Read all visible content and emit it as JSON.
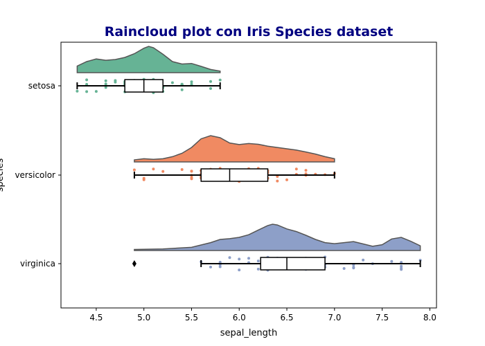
{
  "chart_data": {
    "type": "raincloud",
    "title": "Raincloud plot con Iris Species dataset",
    "xlabel": "sepal_length",
    "ylabel": "species",
    "xlim": [
      4.13,
      8.07
    ],
    "x_ticks": [
      "4.5",
      "5.0",
      "5.5",
      "6.0",
      "6.5",
      "7.0",
      "7.5",
      "8.0"
    ],
    "grid": false,
    "colors": {
      "title": "#000080",
      "axis": "#000000",
      "cloud_edge": "#555555"
    },
    "categories": [
      "setosa",
      "versicolor",
      "virginica"
    ],
    "series": [
      {
        "name": "setosa",
        "color": "#66b395",
        "box": {
          "whisker_low": 4.3,
          "q1": 4.8,
          "median": 5.0,
          "q3": 5.2,
          "whisker_high": 5.8
        },
        "outliers": [],
        "kde": {
          "x": [
            4.3,
            4.4,
            4.5,
            4.6,
            4.7,
            4.8,
            4.9,
            5.0,
            5.05,
            5.1,
            5.2,
            5.3,
            5.4,
            5.5,
            5.6,
            5.7,
            5.8
          ],
          "density": [
            0.25,
            0.42,
            0.52,
            0.47,
            0.5,
            0.58,
            0.72,
            0.93,
            1.0,
            0.95,
            0.7,
            0.42,
            0.33,
            0.35,
            0.24,
            0.12,
            0.06
          ]
        },
        "points": [
          4.3,
          4.4,
          4.4,
          4.4,
          4.5,
          4.6,
          4.6,
          4.6,
          4.6,
          4.7,
          4.7,
          4.8,
          4.8,
          4.8,
          4.8,
          4.8,
          4.9,
          4.9,
          4.9,
          4.9,
          5.0,
          5.0,
          5.0,
          5.0,
          5.0,
          5.0,
          5.0,
          5.0,
          5.1,
          5.1,
          5.1,
          5.1,
          5.1,
          5.1,
          5.1,
          5.1,
          5.2,
          5.2,
          5.2,
          5.3,
          5.4,
          5.4,
          5.4,
          5.4,
          5.4,
          5.5,
          5.5,
          5.7,
          5.7,
          5.8
        ]
      },
      {
        "name": "versicolor",
        "color": "#f08a62",
        "box": {
          "whisker_low": 4.9,
          "q1": 5.6,
          "median": 5.9,
          "q3": 6.3,
          "whisker_high": 7.0
        },
        "outliers": [],
        "kde": {
          "x": [
            4.9,
            5.0,
            5.1,
            5.2,
            5.3,
            5.4,
            5.5,
            5.6,
            5.7,
            5.8,
            5.9,
            6.0,
            6.1,
            6.2,
            6.3,
            6.4,
            6.5,
            6.6,
            6.7,
            6.8,
            6.9,
            7.0
          ],
          "density": [
            0.08,
            0.12,
            0.1,
            0.12,
            0.2,
            0.33,
            0.55,
            0.88,
            1.0,
            0.92,
            0.72,
            0.66,
            0.7,
            0.67,
            0.6,
            0.55,
            0.5,
            0.45,
            0.38,
            0.3,
            0.2,
            0.12
          ]
        },
        "points": [
          4.9,
          5.0,
          5.0,
          5.1,
          5.2,
          5.4,
          5.5,
          5.5,
          5.5,
          5.5,
          5.5,
          5.6,
          5.6,
          5.6,
          5.6,
          5.6,
          5.7,
          5.7,
          5.7,
          5.7,
          5.7,
          5.8,
          5.8,
          5.8,
          5.9,
          5.9,
          6.0,
          6.0,
          6.0,
          6.0,
          6.1,
          6.1,
          6.1,
          6.1,
          6.2,
          6.2,
          6.3,
          6.3,
          6.3,
          6.4,
          6.4,
          6.5,
          6.6,
          6.6,
          6.7,
          6.7,
          6.7,
          6.8,
          6.9,
          7.0
        ]
      },
      {
        "name": "virginica",
        "color": "#8d9fc8",
        "box": {
          "whisker_low": 5.6,
          "q1": 6.225,
          "median": 6.5,
          "q3": 6.9,
          "whisker_high": 7.9
        },
        "outliers": [
          4.9
        ],
        "kde": {
          "x": [
            4.9,
            5.2,
            5.5,
            5.7,
            5.8,
            5.9,
            6.0,
            6.1,
            6.2,
            6.3,
            6.35,
            6.4,
            6.5,
            6.6,
            6.7,
            6.8,
            6.9,
            7.0,
            7.1,
            7.2,
            7.3,
            7.4,
            7.5,
            7.6,
            7.7,
            7.8,
            7.9
          ],
          "density": [
            0.04,
            0.06,
            0.12,
            0.3,
            0.42,
            0.45,
            0.5,
            0.6,
            0.78,
            0.95,
            1.0,
            0.97,
            0.82,
            0.72,
            0.58,
            0.42,
            0.3,
            0.26,
            0.3,
            0.34,
            0.25,
            0.16,
            0.22,
            0.44,
            0.5,
            0.35,
            0.18
          ]
        },
        "points": [
          4.9,
          5.6,
          5.7,
          5.8,
          5.8,
          5.8,
          5.9,
          6.0,
          6.0,
          6.1,
          6.1,
          6.2,
          6.2,
          6.3,
          6.3,
          6.3,
          6.3,
          6.3,
          6.3,
          6.4,
          6.4,
          6.4,
          6.4,
          6.4,
          6.5,
          6.5,
          6.5,
          6.5,
          6.7,
          6.7,
          6.7,
          6.7,
          6.7,
          6.8,
          6.8,
          6.9,
          6.9,
          6.9,
          7.1,
          7.2,
          7.2,
          7.2,
          7.3,
          7.4,
          7.6,
          7.7,
          7.7,
          7.7,
          7.7,
          7.9
        ]
      }
    ]
  }
}
